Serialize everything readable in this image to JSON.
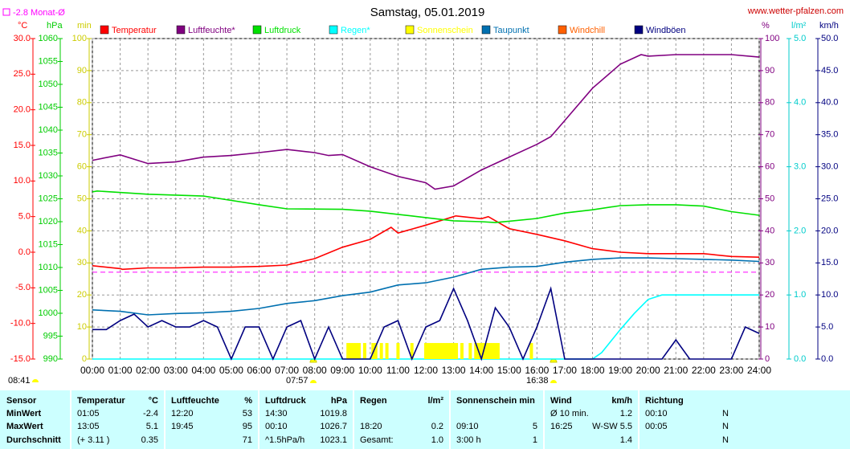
{
  "chart_data": {
    "type": "line",
    "title": "Samstag, 05.01.2019",
    "source": "www.wetter-pfalzen.com",
    "month_avg": -2.8,
    "month_avg_label": "Monat-Ø",
    "annotations": [
      "08:41",
      "07:57",
      "16:38"
    ],
    "grid": true,
    "xlim": [
      0,
      24
    ],
    "xticks": [
      {
        "value": 0,
        "label": "00:00"
      },
      {
        "value": 1,
        "label": "01:00"
      },
      {
        "value": 2,
        "label": "02:00"
      },
      {
        "value": 3,
        "label": "03:00"
      },
      {
        "value": 4,
        "label": "04:00"
      },
      {
        "value": 5,
        "label": "05:00"
      },
      {
        "value": 6,
        "label": "06:00"
      },
      {
        "value": 7,
        "label": "07:00"
      },
      {
        "value": 8,
        "label": "08:00"
      },
      {
        "value": 9,
        "label": "09:00"
      },
      {
        "value": 10,
        "label": "10:00"
      },
      {
        "value": 11,
        "label": "11:00"
      },
      {
        "value": 12,
        "label": "12:00"
      },
      {
        "value": 13,
        "label": "13:00"
      },
      {
        "value": 14,
        "label": "14:00"
      },
      {
        "value": 15,
        "label": "15:00"
      },
      {
        "value": 16,
        "label": "16:00"
      },
      {
        "value": 17,
        "label": "17:00"
      },
      {
        "value": 18,
        "label": "18:00"
      },
      {
        "value": 19,
        "label": "19:00"
      },
      {
        "value": 20,
        "label": "20:00"
      },
      {
        "value": 21,
        "label": "21:00"
      },
      {
        "value": 22,
        "label": "22:00"
      },
      {
        "value": 23,
        "label": "23:00"
      },
      {
        "value": 24,
        "label": "24:00"
      }
    ],
    "ylabel": "°C",
    "ycolor": "#ff0000",
    "ylim": [
      -15,
      30
    ],
    "yticks": [
      {
        "value": -15,
        "label": "-15.0"
      },
      {
        "value": -10,
        "label": "-10.0"
      },
      {
        "value": -5,
        "label": "-5.0"
      },
      {
        "value": 0,
        "label": "0.0"
      },
      {
        "value": 5,
        "label": "5.0"
      },
      {
        "value": 10,
        "label": "10.0"
      },
      {
        "value": 15,
        "label": "15.0"
      },
      {
        "value": 20,
        "label": "20.0"
      },
      {
        "value": 25,
        "label": "25.0"
      },
      {
        "value": 30,
        "label": "30.0"
      }
    ],
    "y2label": "hPa",
    "y2color": "#00cc00",
    "y2lim": [
      990,
      1060
    ],
    "y2ticks": [
      990,
      995,
      1000,
      1005,
      1010,
      1015,
      1020,
      1025,
      1030,
      1035,
      1040,
      1045,
      1050,
      1055,
      1060
    ],
    "y3label": "min",
    "y3color": "#cccc00",
    "y3lim": [
      0,
      100
    ],
    "y3ticks": [
      0,
      10,
      20,
      30,
      40,
      50,
      60,
      70,
      80,
      90,
      100
    ],
    "y4label": "%",
    "y4color": "#800080",
    "y4lim": [
      0,
      100
    ],
    "y4ticks": [
      0,
      10,
      20,
      30,
      40,
      50,
      60,
      70,
      80,
      90,
      100
    ],
    "y5label": "l/m²",
    "y5color": "#00cccc",
    "y5lim": [
      0,
      5
    ],
    "y5ticks": [
      {
        "value": 0,
        "label": "0.0"
      },
      {
        "value": 1,
        "label": "1.0"
      },
      {
        "value": 2,
        "label": "2.0"
      },
      {
        "value": 3,
        "label": "3.0"
      },
      {
        "value": 4,
        "label": "4.0"
      },
      {
        "value": 5,
        "label": "5.0"
      }
    ],
    "y6label": "km/h",
    "y6color": "#000080",
    "y6lim": [
      0,
      50
    ],
    "y6ticks": [
      {
        "value": 0,
        "label": "0.0"
      },
      {
        "value": 5,
        "label": "5.0"
      },
      {
        "value": 10,
        "label": "10.0"
      },
      {
        "value": 15,
        "label": "15.0"
      },
      {
        "value": 20,
        "label": "20.0"
      },
      {
        "value": 25,
        "label": "25.0"
      },
      {
        "value": 30,
        "label": "30.0"
      },
      {
        "value": 35,
        "label": "35.0"
      },
      {
        "value": 40,
        "label": "40.0"
      },
      {
        "value": 45,
        "label": "45.0"
      },
      {
        "value": 50,
        "label": "50.0"
      }
    ],
    "series": [
      {
        "name": "Temperatur",
        "color": "#ff0000",
        "kind": "line",
        "axis": "y",
        "x": [
          0,
          1,
          1.08,
          2,
          3,
          4,
          5,
          6,
          7,
          8,
          9,
          10,
          10.75,
          11,
          12,
          13,
          13.08,
          14,
          14.25,
          15,
          16,
          17,
          18,
          19,
          20,
          21,
          22,
          23,
          24
        ],
        "values": [
          -1.9,
          -2.3,
          -2.4,
          -2.2,
          -2.2,
          -2.1,
          -2.1,
          -2.0,
          -1.8,
          -0.9,
          0.7,
          1.8,
          3.5,
          2.7,
          3.8,
          5.0,
          5.1,
          4.7,
          5.0,
          3.3,
          2.5,
          1.6,
          0.5,
          0.0,
          -0.2,
          -0.2,
          -0.2,
          -0.6,
          -0.7
        ]
      },
      {
        "name": "Luftfeuchte*",
        "color": "#800080",
        "kind": "line",
        "axis": "y4",
        "x": [
          0,
          1,
          2,
          3,
          4,
          5,
          6,
          7,
          8,
          8.5,
          9,
          10,
          11,
          12,
          12.33,
          13,
          14,
          15,
          16,
          16.5,
          17,
          18,
          19,
          19.75,
          20,
          21,
          22,
          23,
          24
        ],
        "values": [
          62,
          63.7,
          61,
          61.5,
          63,
          63.5,
          64.4,
          65.4,
          64.4,
          63.5,
          63.8,
          60,
          57,
          55,
          53,
          54,
          59,
          63,
          67,
          69.4,
          74.4,
          84.5,
          92,
          95,
          94.5,
          95,
          95,
          95,
          94.2
        ]
      },
      {
        "name": "Luftdruck",
        "color": "#00e000",
        "kind": "line",
        "axis": "y2",
        "x": [
          0,
          0.17,
          2,
          4,
          6,
          7,
          9,
          10,
          11,
          12,
          13,
          14,
          14.5,
          15,
          16,
          17,
          18,
          19,
          20,
          21,
          22,
          23,
          24
        ],
        "values": [
          1026.5,
          1026.7,
          1026.0,
          1025.6,
          1023.7,
          1022.8,
          1022.7,
          1022.3,
          1021.6,
          1020.9,
          1020.2,
          1020.0,
          1019.8,
          1020.1,
          1020.7,
          1021.9,
          1022.6,
          1023.5,
          1023.7,
          1023.7,
          1023.4,
          1022.2,
          1021.4
        ]
      },
      {
        "name": "Regen*",
        "color": "#00ffff",
        "kind": "line",
        "axis": "y5",
        "x": [
          0,
          18,
          18.33,
          18.7,
          19,
          19.5,
          20,
          20.5,
          21,
          24
        ],
        "values": [
          0,
          0,
          0.1,
          0.3,
          0.46,
          0.71,
          0.93,
          1.0,
          1.0,
          1.0
        ]
      },
      {
        "name": "Sonnenschein",
        "color": "#ffff00",
        "kind": "bar",
        "axis": "y3",
        "x": [
          9.2,
          9.3,
          9.4,
          9.5,
          9.6,
          9.8,
          10.1,
          10.2,
          10.4,
          10.6,
          11.0,
          11.5,
          12.0,
          12.1,
          12.2,
          12.3,
          12.4,
          12.5,
          12.6,
          12.7,
          12.8,
          12.9,
          13.0,
          13.1,
          13.3,
          13.6,
          13.8,
          13.9,
          14.0,
          14.1,
          14.2,
          14.3,
          14.4,
          14.5,
          14.6,
          15.8
        ],
        "values": [
          5,
          5,
          5,
          5,
          5,
          5,
          5,
          5,
          5,
          5,
          5,
          5,
          5,
          5,
          5,
          5,
          5,
          5,
          5,
          5,
          5,
          5,
          5,
          5,
          5,
          5,
          5,
          5,
          5,
          5,
          5,
          5,
          5,
          5,
          5,
          5
        ]
      },
      {
        "name": "Taupunkt",
        "color": "#0070b0",
        "kind": "line",
        "axis": "y",
        "x": [
          0,
          1,
          2,
          3,
          4,
          5,
          6,
          7,
          8,
          9,
          10,
          11,
          12,
          13,
          14,
          15,
          16,
          17,
          18,
          19,
          20,
          21,
          22,
          23,
          24
        ],
        "values": [
          -8.1,
          -8.3,
          -8.8,
          -8.6,
          -8.5,
          -8.3,
          -7.9,
          -7.2,
          -6.8,
          -6.1,
          -5.6,
          -4.6,
          -4.3,
          -3.5,
          -2.4,
          -2.1,
          -2.0,
          -1.4,
          -1.0,
          -0.8,
          -0.8,
          -0.9,
          -1.0,
          -1.1,
          -1.3
        ]
      },
      {
        "name": "Windchill",
        "color": "#ff6000",
        "kind": "line",
        "axis": "y",
        "x": [],
        "values": []
      },
      {
        "name": "Windböen",
        "color": "#000080",
        "kind": "line",
        "axis": "y6",
        "x": [
          0,
          0.5,
          1,
          1.5,
          2,
          2.5,
          3,
          3.5,
          4,
          4.5,
          5,
          5.5,
          6,
          6.5,
          7,
          7.5,
          8,
          8.5,
          9,
          9.5,
          10,
          10.5,
          11,
          11.5,
          12,
          12.5,
          13,
          13.5,
          14,
          14.5,
          15,
          15.5,
          16,
          16.5,
          17,
          17.5,
          18,
          18.5,
          19,
          19.5,
          20,
          20.5,
          21,
          21.5,
          22,
          22.5,
          23,
          23.5,
          24
        ],
        "values": [
          4.6,
          4.6,
          6,
          7,
          5,
          6,
          5,
          5,
          6,
          5,
          0,
          5,
          5,
          0,
          5,
          6,
          0,
          5,
          0,
          0,
          0,
          5,
          6,
          0,
          5,
          6,
          11,
          6,
          0,
          8,
          5,
          0,
          5,
          11,
          0,
          0,
          0,
          0,
          0,
          0,
          0,
          0,
          3,
          0,
          0,
          0,
          0,
          5,
          4
        ]
      }
    ]
  },
  "table": {
    "header": [
      "Sensor",
      "Temperatur",
      "°C",
      "Luftfeuchte",
      "%",
      "Luftdruck",
      "hPa",
      "Regen",
      "l/m²",
      "Sonnenschein min",
      null,
      "Wind",
      "km/h",
      "Richtung",
      null
    ],
    "rows": [
      [
        "MinWert",
        "01:05",
        "-2.4",
        "12:20",
        "53",
        "14:30",
        "1019.8",
        null,
        null,
        null,
        null,
        "Ø 10 min.",
        "1.2",
        "00:10",
        "N"
      ],
      [
        "MaxWert",
        "13:05",
        "5.1",
        "19:45",
        "95",
        "00:10",
        "1026.7",
        "18:20",
        "0.2",
        "09:10",
        "5",
        "16:25",
        "W-SW 5.5",
        "00:05",
        "N"
      ],
      [
        "Durchschnitt",
        "(+ 3.11 )",
        "0.35",
        null,
        "71",
        "^1.5hPa/h",
        "1023.1",
        "Gesamt:",
        "1.0",
        "3:00 h",
        "1",
        null,
        "1.4",
        null,
        "N"
      ]
    ]
  }
}
